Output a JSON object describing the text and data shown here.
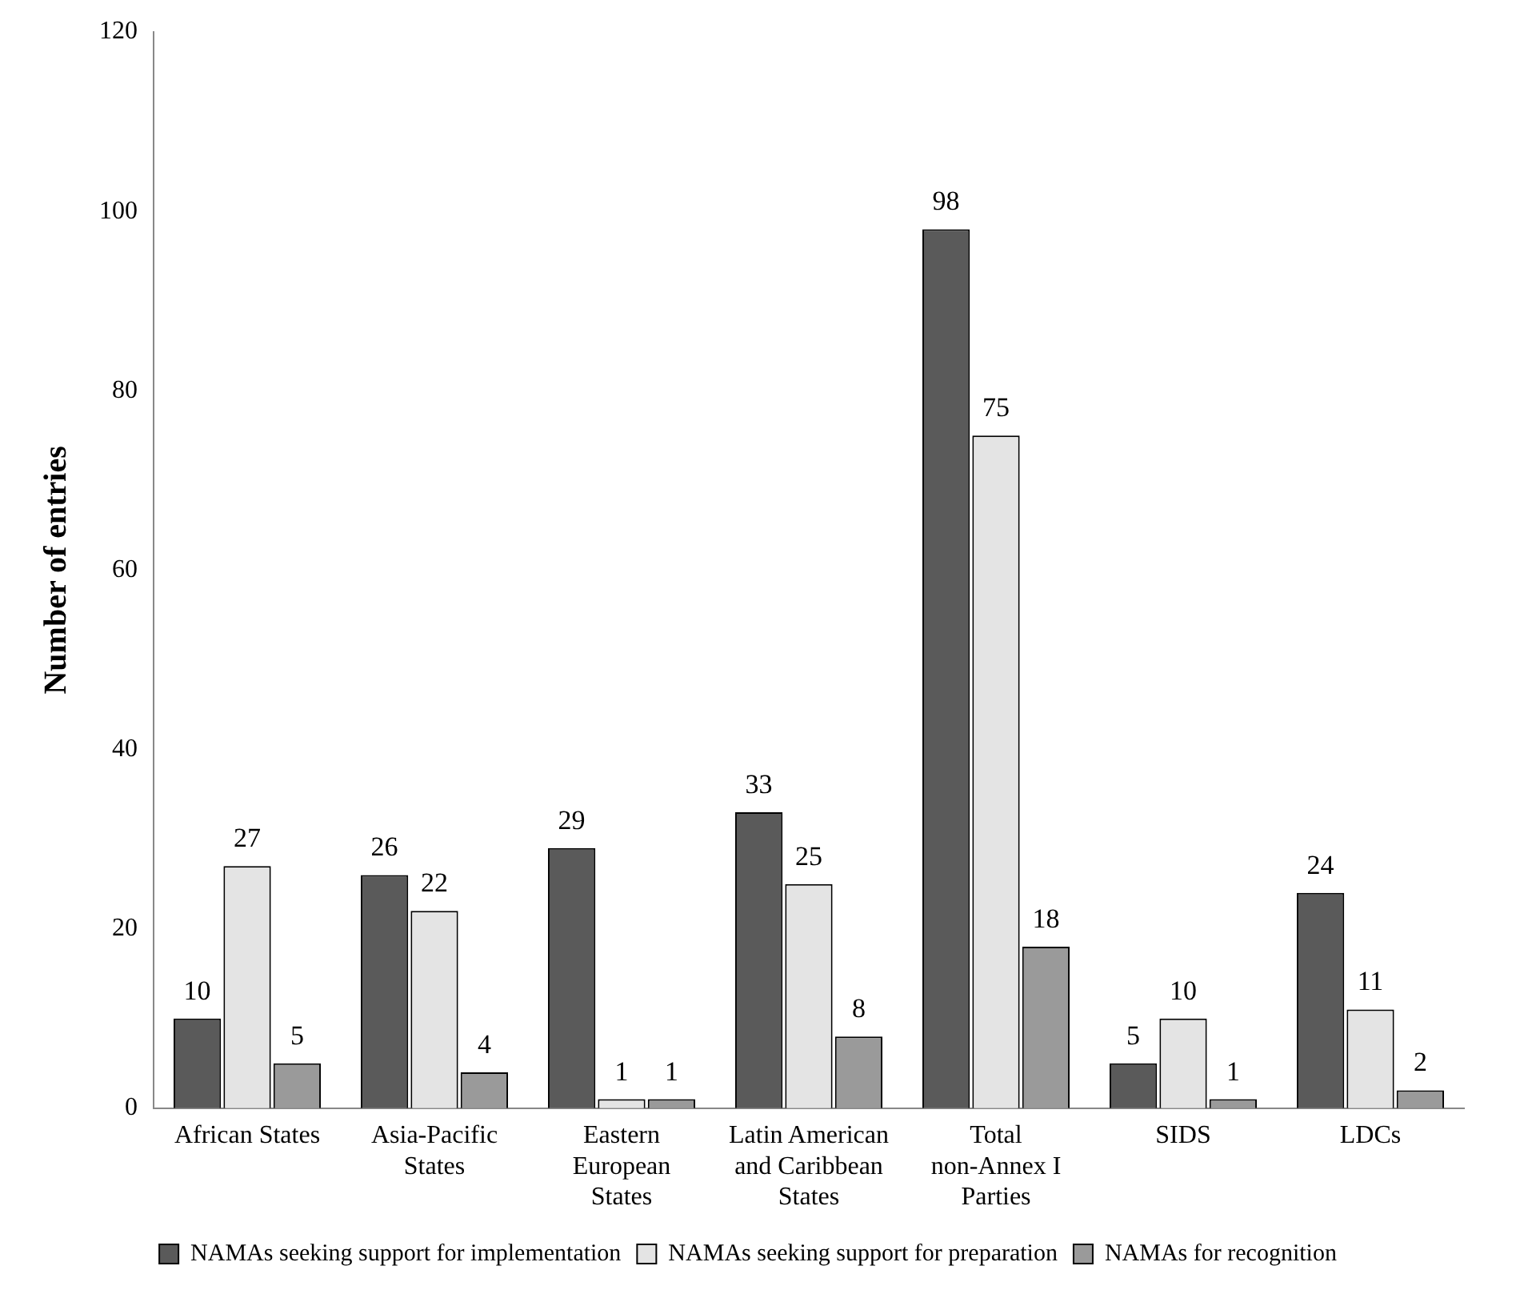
{
  "chart_data": {
    "type": "bar",
    "ylabel": "Number of entries",
    "categories": [
      "African States",
      "Asia-Pacific States",
      "Eastern European States",
      "Latin American and Caribbean States",
      "Total non-Annex I Parties",
      "SIDS",
      "LDCs"
    ],
    "series": [
      {
        "name": "NAMAs seeking support for implementation",
        "color": "#5a5a5a",
        "values": [
          10,
          26,
          29,
          33,
          98,
          5,
          24
        ]
      },
      {
        "name": "NAMAs seeking support for preparation",
        "color": "#e4e4e4",
        "values": [
          27,
          22,
          1,
          25,
          75,
          10,
          11
        ]
      },
      {
        "name": "NAMAs for recognition",
        "color": "#9a9a9a",
        "values": [
          5,
          4,
          1,
          8,
          18,
          1,
          2
        ]
      }
    ],
    "ylim": [
      0,
      120
    ],
    "yticks": [
      0,
      20,
      40,
      60,
      80,
      100,
      120
    ],
    "grid": false,
    "legend": "bottom",
    "data_labels": true
  }
}
